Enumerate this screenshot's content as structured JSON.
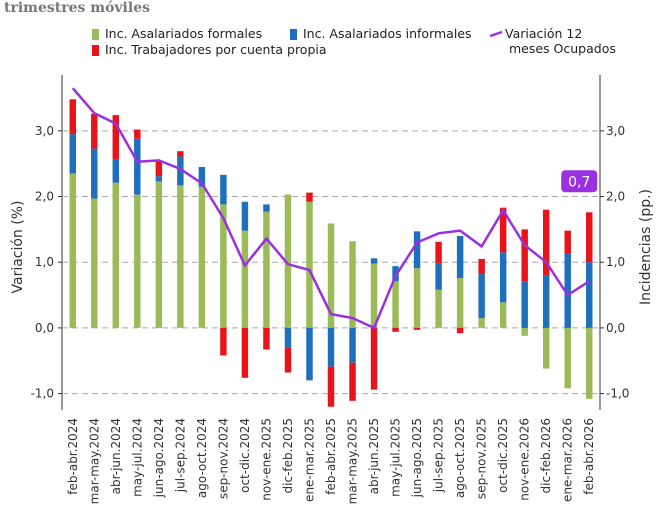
{
  "chart_data": {
    "type": "stacked-bar-line",
    "subtitle": "trimestres móviles",
    "y_label": "Variación (%)",
    "y2_label": "Incidencias (pp.)",
    "categories": [
      "feb-abr.2024",
      "mar-may.2024",
      "abr-jun.2024",
      "may-jul.2024",
      "jun-ago.2024",
      "jul-sep.2024",
      "ago-oct.2024",
      "sep-nov.2024",
      "oct-dic.2024",
      "nov-ene.2025",
      "dic-feb.2025",
      "ene-mar.2025",
      "feb-abr.2025",
      "mar-may.2025",
      "abr-jun.2025",
      "may-jul.2025",
      "jun-ago.2025",
      "jul-sep.2025",
      "ago-oct.2025",
      "sep-nov.2025",
      "oct-dic.2025",
      "nov-ene.2026",
      "dic-feb.2026",
      "ene-mar.2026",
      "feb-abr.2026"
    ],
    "series": [
      {
        "name": "Inc. Asalariados formales",
        "color": "#9bbb59",
        "kind": "bar",
        "axis": "y2",
        "values": [
          2.35,
          1.97,
          2.21,
          2.03,
          2.23,
          2.17,
          2.15,
          1.88,
          1.48,
          1.77,
          2.03,
          1.92,
          1.59,
          1.32,
          0.98,
          0.71,
          0.91,
          0.58,
          0.76,
          0.15,
          0.39,
          -0.12,
          -0.62,
          -0.92,
          -1.08
        ]
      },
      {
        "name": "Inc. Asalariados informales",
        "color": "#1f6fbf",
        "kind": "bar",
        "axis": "y2",
        "values": [
          0.6,
          0.76,
          0.36,
          0.85,
          0.08,
          0.44,
          0.3,
          0.45,
          0.44,
          0.11,
          -0.3,
          -0.8,
          -0.59,
          -0.53,
          0.08,
          0.23,
          0.56,
          0.41,
          0.64,
          0.67,
          0.76,
          0.71,
          0.8,
          1.14,
          1.0
        ]
      },
      {
        "name": "Inc. Trabajadores por cuenta propia",
        "color": "#e8141a",
        "kind": "bar",
        "axis": "y2",
        "values": [
          0.53,
          0.53,
          0.67,
          0.14,
          0.23,
          0.08,
          0,
          -0.42,
          -0.76,
          -0.33,
          -0.38,
          0.14,
          -0.61,
          -0.58,
          -0.94,
          -0.06,
          -0.03,
          0.32,
          -0.08,
          0.23,
          0.68,
          0.79,
          1.0,
          0.34,
          0.76
        ]
      },
      {
        "name": "Variación 12\n meses Ocupados",
        "color": "#9b30e0",
        "kind": "line",
        "values": [
          3.65,
          3.27,
          3.11,
          2.53,
          2.55,
          2.42,
          2.2,
          1.67,
          0.95,
          1.36,
          0.97,
          0.88,
          0.21,
          0.15,
          0.0,
          0.79,
          1.3,
          1.44,
          1.48,
          1.24,
          1.79,
          1.26,
          1.0,
          0.5,
          0.71
        ],
        "value_labels": [
          null,
          null,
          null,
          null,
          null,
          null,
          null,
          null,
          null,
          null,
          null,
          null,
          null,
          null,
          null,
          null,
          null,
          null,
          null,
          null,
          null,
          null,
          null,
          null,
          "0,7"
        ]
      }
    ],
    "ylim": [
      -1.25,
      3.85
    ],
    "yticks": [
      {
        "value": -1,
        "label": "-1,0"
      },
      {
        "value": 0,
        "label": "0,0"
      },
      {
        "value": 1,
        "label": "1,0"
      },
      {
        "value": 2,
        "label": "2,0"
      },
      {
        "value": 3,
        "label": "3,0"
      }
    ],
    "y2lim": [
      -1.25,
      3.85
    ],
    "y2ticks": [
      {
        "value": -1,
        "label": "-1,0"
      },
      {
        "value": 0,
        "label": "0,0"
      },
      {
        "value": 1,
        "label": "1,0"
      },
      {
        "value": 2,
        "label": "2,0"
      },
      {
        "value": 3,
        "label": "3,0"
      }
    ],
    "grid": true
  }
}
